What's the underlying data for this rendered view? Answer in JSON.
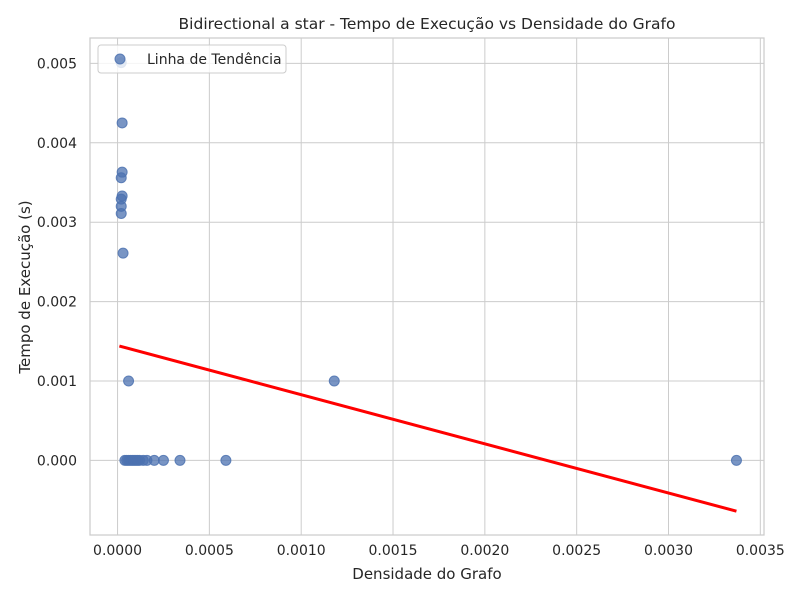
{
  "chart_data": {
    "type": "scatter",
    "title": "Bidirectional a star - Tempo de Execução vs Densidade do Grafo",
    "xlabel": "Densidade do Grafo",
    "ylabel": "Tempo de Execução (s)",
    "xlim": [
      -0.00015,
      0.00352
    ],
    "ylim": [
      -0.00094,
      0.00532
    ],
    "xticks": [
      0.0,
      0.0005,
      0.001,
      0.0015,
      0.002,
      0.0025,
      0.003,
      0.0035
    ],
    "xtick_labels": [
      "0.0000",
      "0.0005",
      "0.0010",
      "0.0015",
      "0.0020",
      "0.0025",
      "0.0030",
      "0.0035"
    ],
    "yticks": [
      0.0,
      0.001,
      0.002,
      0.003,
      0.004,
      0.005
    ],
    "ytick_labels": [
      "0.000",
      "0.001",
      "0.002",
      "0.003",
      "0.004",
      "0.005"
    ],
    "grid": true,
    "legend": {
      "placement": "top-left",
      "entries": [
        "Linha de Tendência"
      ]
    },
    "colors": {
      "points": "#4c72b0",
      "trend": "#ff0000",
      "grid": "#cccccc",
      "text": "#262626"
    },
    "series": [
      {
        "type": "scatter",
        "name": "Linha de Tendência",
        "points": [
          [
            2e-05,
            0.00501
          ],
          [
            2.5e-05,
            0.00425
          ],
          [
            2.5e-05,
            0.00363
          ],
          [
            2e-05,
            0.00356
          ],
          [
            2.5e-05,
            0.00333
          ],
          [
            2e-05,
            0.00329
          ],
          [
            2e-05,
            0.0032
          ],
          [
            2e-05,
            0.00311
          ],
          [
            3e-05,
            0.00261
          ],
          [
            6e-05,
            0.001
          ],
          [
            0.00118,
            0.001
          ],
          [
            4e-05,
            0.0
          ],
          [
            5e-05,
            0.0
          ],
          [
            6e-05,
            0.0
          ],
          [
            7e-05,
            0.0
          ],
          [
            8e-05,
            0.0
          ],
          [
            9e-05,
            0.0
          ],
          [
            0.0001,
            0.0
          ],
          [
            0.00011,
            0.0
          ],
          [
            0.00012,
            0.0
          ],
          [
            0.00014,
            0.0
          ],
          [
            0.00016,
            0.0
          ],
          [
            0.0002,
            0.0
          ],
          [
            0.00025,
            0.0
          ],
          [
            0.00034,
            0.0
          ],
          [
            0.00059,
            0.0
          ],
          [
            0.00337,
            0.0
          ]
        ]
      },
      {
        "type": "line",
        "name": "",
        "x": [
          1e-05,
          0.00337
        ],
        "y": [
          0.00144,
          -0.00064
        ]
      }
    ]
  }
}
